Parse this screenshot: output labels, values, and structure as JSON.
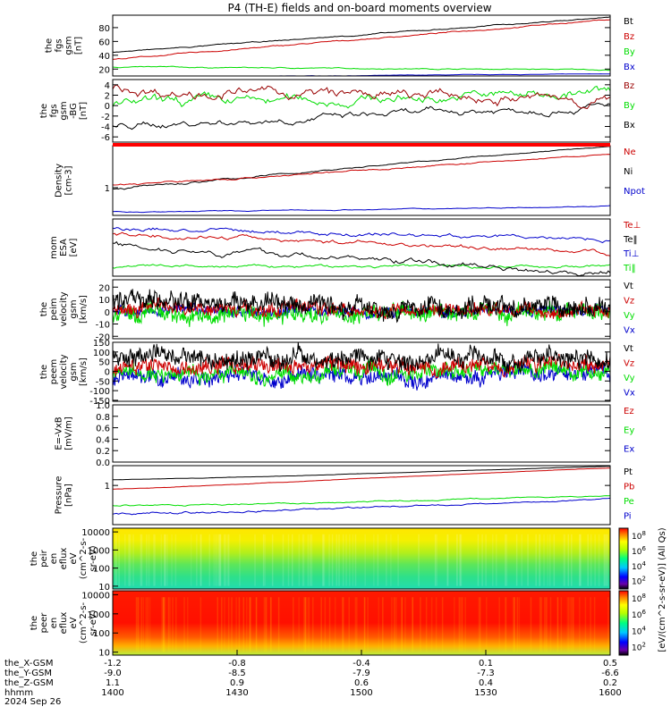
{
  "title": "P4 (TH-E) fields and on-board moments overview",
  "chart_data": [
    {
      "type": "line",
      "ylabel": [
        "the",
        "fgs",
        "gsm",
        "[nT]"
      ],
      "yticks": [
        "20",
        "40",
        "60",
        "80"
      ],
      "ylim": [
        10,
        98
      ],
      "series": [
        {
          "name": "Bt",
          "color": "#000000",
          "start": 44,
          "end": 95,
          "noise": 1.2
        },
        {
          "name": "Bz",
          "color": "#cc0000",
          "start": 34,
          "end": 92,
          "noise": 1.2
        },
        {
          "name": "By",
          "color": "#00dd00",
          "start": 23,
          "end": 19,
          "noise": 1.0
        },
        {
          "name": "Bx",
          "color": "#0000cc",
          "start": 8,
          "end": 13,
          "noise": 0.4
        }
      ]
    },
    {
      "type": "line",
      "ylabel": [
        "the",
        "fgs",
        "gsm",
        "-BG",
        "[nT]"
      ],
      "yticks": [
        "-6",
        "-4",
        "-2",
        "0",
        "2",
        "4"
      ],
      "ylim": [
        -7,
        5
      ],
      "series": [
        {
          "name": "Bz",
          "color": "#990000",
          "start": 3,
          "end": 1,
          "noise": 1.4
        },
        {
          "name": "By",
          "color": "#00dd00",
          "start": 0,
          "end": 2.5,
          "noise": 1.4
        },
        {
          "name": "Bx",
          "color": "#000000",
          "start": -4,
          "end": 0,
          "noise": 0.9
        }
      ]
    },
    {
      "type": "line",
      "ylabel": [
        "Density",
        "[cm-3]"
      ],
      "yticks": [
        "1"
      ],
      "ylim": [
        0.4,
        4
      ],
      "series": [
        {
          "name": "Ne",
          "color": "#cc0000",
          "start": 1.1,
          "end": 3.0,
          "noise": 0.06
        },
        {
          "name": "Ni",
          "color": "#000000",
          "start": 0.95,
          "end": 3.9,
          "noise": 0.06
        },
        {
          "name": "Npot",
          "color": "#0000cc",
          "start": 0.45,
          "end": 0.55,
          "noise": 0.01
        }
      ]
    },
    {
      "type": "line",
      "ylabel": [
        "mom",
        "ESA",
        "[eV]"
      ],
      "yticks": [],
      "ylim": [
        0,
        10
      ],
      "series": [
        {
          "name": "Te⊥",
          "color": "#cc0000",
          "start": 7.5,
          "end": 4.2,
          "noise": 0.5
        },
        {
          "name": "Te‖",
          "color": "#000000",
          "start": 5.5,
          "end": 0.6,
          "noise": 0.7
        },
        {
          "name": "Ti⊥",
          "color": "#0000cc",
          "start": 8.3,
          "end": 6.5,
          "noise": 0.5
        },
        {
          "name": "Ti‖",
          "color": "#00dd00",
          "start": 1.6,
          "end": 1.8,
          "noise": 0.4
        }
      ]
    },
    {
      "type": "line",
      "ylabel": [
        "the",
        "peim",
        "velocity",
        "gsm",
        "[km/s]"
      ],
      "yticks": [
        "-20",
        "-10",
        "0",
        "10",
        "20"
      ],
      "ylim": [
        -22,
        26
      ],
      "series": [
        {
          "name": "Vt",
          "color": "#000000",
          "start": 8,
          "end": 2,
          "noise": 6
        },
        {
          "name": "Vz",
          "color": "#cc0000",
          "start": 4,
          "end": 1,
          "noise": 4
        },
        {
          "name": "Vy",
          "color": "#00dd00",
          "start": -3,
          "end": 0,
          "noise": 5
        },
        {
          "name": "Vx",
          "color": "#0000cc",
          "start": 0,
          "end": 1,
          "noise": 3
        }
      ]
    },
    {
      "type": "line",
      "ylabel": [
        "the",
        "peem",
        "velocity",
        "gsm",
        "[km/s]"
      ],
      "yticks": [
        "-150",
        "-100",
        "-50",
        "0",
        "50",
        "100",
        "150"
      ],
      "ylim": [
        -155,
        150
      ],
      "series": [
        {
          "name": "Vt",
          "color": "#000000",
          "start": 80,
          "end": 60,
          "noise": 35
        },
        {
          "name": "Vz",
          "color": "#cc0000",
          "start": 20,
          "end": 40,
          "noise": 30
        },
        {
          "name": "Vy",
          "color": "#00dd00",
          "start": -20,
          "end": 0,
          "noise": 30
        },
        {
          "name": "Vx",
          "color": "#0000cc",
          "start": -40,
          "end": -10,
          "noise": 30
        }
      ]
    },
    {
      "type": "line",
      "ylabel": [
        "E=-VxB",
        "[mV/m]"
      ],
      "yticks": [
        "0.0",
        "0.2",
        "0.4",
        "0.6",
        "0.8",
        "1.0"
      ],
      "ylim": [
        0,
        1
      ],
      "series": [
        {
          "name": "Ez",
          "color": "#cc0000"
        },
        {
          "name": "Ey",
          "color": "#00dd00"
        },
        {
          "name": "Ex",
          "color": "#0000cc"
        }
      ]
    },
    {
      "type": "line",
      "ylabel": [
        "Pressure",
        "[nPa]"
      ],
      "yticks": [
        "1"
      ],
      "ylim": [
        0.1,
        3.2
      ],
      "series": [
        {
          "name": "Pt",
          "color": "#000000",
          "start": 1.4,
          "end": 3.1,
          "noise": 0.02
        },
        {
          "name": "Pb",
          "color": "#cc0000",
          "start": 0.8,
          "end": 2.8,
          "noise": 0.02
        },
        {
          "name": "Pe",
          "color": "#00dd00",
          "start": 0.3,
          "end": 0.55,
          "noise": 0.02
        },
        {
          "name": "Pi",
          "color": "#0000cc",
          "start": 0.18,
          "end": 0.45,
          "noise": 0.02
        }
      ]
    },
    {
      "type": "heatmap",
      "ylabel": [
        "the",
        "peir",
        "en",
        "eflux",
        "eV",
        "(cm^2-s-",
        "sr-eV)"
      ],
      "yticks": [
        "10",
        "100",
        "1000",
        "10000"
      ]
    },
    {
      "type": "heatmap",
      "ylabel": [
        "the",
        "peer",
        "en",
        "eflux",
        "eV",
        "(cm^2-s-",
        "sr-eV)"
      ],
      "yticks": [
        "10",
        "100",
        "1000",
        "10000"
      ]
    }
  ],
  "colorbar": {
    "ticks": [
      "10^8",
      "10^6",
      "10^4",
      "10^2"
    ],
    "label": "[eV/(cm^2-s-sr-eV)] (All Qs)"
  },
  "xaxis": {
    "rows": [
      {
        "label": "the_X-GSM",
        "values": [
          "-1.2",
          "-0.8",
          "-0.4",
          "0.1",
          "0.5"
        ]
      },
      {
        "label": "the_Y-GSM",
        "values": [
          "-9.0",
          "-8.5",
          "-7.9",
          "-7.3",
          "-6.6"
        ]
      },
      {
        "label": "the_Z-GSM",
        "values": [
          "1.1",
          "0.9",
          "0.6",
          "0.4",
          "0.2"
        ]
      },
      {
        "label": "hhmm",
        "values": [
          "1400",
          "1430",
          "1500",
          "1530",
          "1600"
        ]
      }
    ],
    "date": "2024 Sep 26"
  }
}
